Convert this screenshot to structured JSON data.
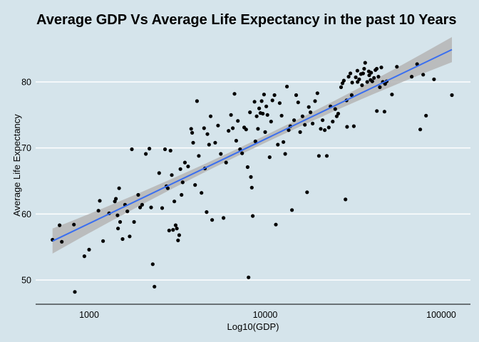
{
  "chart_data": {
    "type": "scatter",
    "title": "Average GDP Vs Average Life Expectancy in the past 10 Years",
    "xlabel": "Log10(GDP)",
    "ylabel": "Average Life Expectancy",
    "x_scale": "log10",
    "xlim": [
      450,
      150000
    ],
    "ylim": [
      45.5,
      86
    ],
    "x_ticks": [
      {
        "value": 1000,
        "label": "1000"
      },
      {
        "value": 10000,
        "label": "10000"
      },
      {
        "value": 100000,
        "label": "100000"
      }
    ],
    "y_ticks": [
      {
        "value": 50,
        "label": "50"
      },
      {
        "value": 60,
        "label": "60"
      },
      {
        "value": 70,
        "label": "70"
      },
      {
        "value": 80,
        "label": "80"
      }
    ],
    "grid": "horizontal-major",
    "legend": "none",
    "colors": {
      "background": "#d5e4eb",
      "grid": "#ffffff",
      "points": "#000000",
      "fit_line": "#3a6ff0",
      "confidence_band": "#b5b5b5"
    },
    "trend_line": {
      "method": "linear regression on log10(x)",
      "x_start": 620,
      "y_start": 55.9,
      "x_end": 115000,
      "y_end": 84.9,
      "band_halfwidth_ends": 1.9,
      "band_halfwidth_center": 0.55
    },
    "points": [
      [
        620,
        56.1
      ],
      [
        680,
        58.3
      ],
      [
        700,
        55.8
      ],
      [
        820,
        58.4
      ],
      [
        830,
        48.2
      ],
      [
        940,
        53.6
      ],
      [
        1000,
        54.6
      ],
      [
        1130,
        60.5
      ],
      [
        1150,
        62.0
      ],
      [
        1200,
        55.9
      ],
      [
        1300,
        60.1
      ],
      [
        1400,
        61.9
      ],
      [
        1420,
        62.3
      ],
      [
        1450,
        59.8
      ],
      [
        1460,
        57.8
      ],
      [
        1480,
        63.9
      ],
      [
        1500,
        58.8
      ],
      [
        1550,
        56.2
      ],
      [
        1600,
        61.4
      ],
      [
        1650,
        60.4
      ],
      [
        1700,
        56.6
      ],
      [
        1750,
        69.8
      ],
      [
        1800,
        58.8
      ],
      [
        1900,
        62.9
      ],
      [
        1950,
        61.0
      ],
      [
        2000,
        61.4
      ],
      [
        2100,
        69.1
      ],
      [
        2200,
        69.9
      ],
      [
        2250,
        61.0
      ],
      [
        2300,
        52.4
      ],
      [
        2350,
        49.0
      ],
      [
        2500,
        66.2
      ],
      [
        2600,
        60.9
      ],
      [
        2700,
        69.8
      ],
      [
        2750,
        64.2
      ],
      [
        2800,
        63.9
      ],
      [
        2850,
        57.5
      ],
      [
        2900,
        69.6
      ],
      [
        2950,
        65.9
      ],
      [
        3000,
        57.6
      ],
      [
        3050,
        61.9
      ],
      [
        3100,
        58.3
      ],
      [
        3150,
        57.8
      ],
      [
        3200,
        56.0
      ],
      [
        3250,
        56.8
      ],
      [
        3300,
        66.8
      ],
      [
        3350,
        62.9
      ],
      [
        3400,
        64.8
      ],
      [
        3500,
        67.8
      ],
      [
        3650,
        67.2
      ],
      [
        3800,
        72.9
      ],
      [
        3850,
        72.3
      ],
      [
        3900,
        70.8
      ],
      [
        4000,
        64.4
      ],
      [
        4100,
        77.1
      ],
      [
        4200,
        68.8
      ],
      [
        4350,
        63.2
      ],
      [
        4500,
        73.0
      ],
      [
        4550,
        66.9
      ],
      [
        4650,
        60.3
      ],
      [
        4700,
        72.1
      ],
      [
        4800,
        70.5
      ],
      [
        4900,
        74.8
      ],
      [
        5000,
        59.1
      ],
      [
        5200,
        70.8
      ],
      [
        5400,
        73.4
      ],
      [
        5600,
        69.1
      ],
      [
        5800,
        59.4
      ],
      [
        6000,
        67.8
      ],
      [
        6200,
        72.6
      ],
      [
        6400,
        75.0
      ],
      [
        6550,
        73.0
      ],
      [
        6700,
        78.2
      ],
      [
        6850,
        71.1
      ],
      [
        7000,
        74.1
      ],
      [
        7200,
        69.8
      ],
      [
        7400,
        69.2
      ],
      [
        7600,
        73.1
      ],
      [
        7800,
        72.8
      ],
      [
        7950,
        67.1
      ],
      [
        8050,
        50.4
      ],
      [
        8200,
        75.4
      ],
      [
        8300,
        65.6
      ],
      [
        8400,
        64.0
      ],
      [
        8500,
        59.7
      ],
      [
        8700,
        77.0
      ],
      [
        8800,
        71.0
      ],
      [
        8950,
        74.8
      ],
      [
        9100,
        72.9
      ],
      [
        9250,
        76.0
      ],
      [
        9400,
        75.3
      ],
      [
        9550,
        77.1
      ],
      [
        9700,
        75.2
      ],
      [
        9850,
        78.1
      ],
      [
        10000,
        72.4
      ],
      [
        10150,
        76.3
      ],
      [
        10300,
        75.0
      ],
      [
        10600,
        68.6
      ],
      [
        10800,
        74.0
      ],
      [
        11000,
        77.2
      ],
      [
        11300,
        78.0
      ],
      [
        11500,
        58.4
      ],
      [
        11800,
        70.5
      ],
      [
        12100,
        76.8
      ],
      [
        12400,
        74.9
      ],
      [
        12700,
        70.9
      ],
      [
        13000,
        69.1
      ],
      [
        13300,
        79.3
      ],
      [
        13600,
        72.7
      ],
      [
        13900,
        73.3
      ],
      [
        14200,
        60.6
      ],
      [
        14600,
        74.2
      ],
      [
        15000,
        78.0
      ],
      [
        15400,
        76.9
      ],
      [
        15800,
        72.4
      ],
      [
        16300,
        74.8
      ],
      [
        16800,
        73.5
      ],
      [
        17300,
        63.3
      ],
      [
        17700,
        76.2
      ],
      [
        18100,
        75.4
      ],
      [
        18600,
        73.7
      ],
      [
        19200,
        77.1
      ],
      [
        19800,
        78.3
      ],
      [
        20200,
        68.8
      ],
      [
        20700,
        72.9
      ],
      [
        21200,
        74.2
      ],
      [
        21800,
        72.7
      ],
      [
        22400,
        68.8
      ],
      [
        23000,
        73.1
      ],
      [
        23500,
        76.3
      ],
      [
        24200,
        74.0
      ],
      [
        25000,
        75.9
      ],
      [
        26000,
        75.2
      ],
      [
        27500,
        79.8
      ],
      [
        28000,
        80.2
      ],
      [
        28600,
        62.2
      ],
      [
        29200,
        73.2
      ],
      [
        29800,
        80.8
      ],
      [
        30500,
        81.3
      ],
      [
        31200,
        79.9
      ],
      [
        31900,
        73.3
      ],
      [
        32700,
        80.7
      ],
      [
        33400,
        81.7
      ],
      [
        34200,
        80.4
      ],
      [
        35000,
        81.2
      ],
      [
        36000,
        81.3
      ],
      [
        37000,
        82.9
      ],
      [
        38000,
        80.0
      ],
      [
        38800,
        81.6
      ],
      [
        39700,
        80.3
      ],
      [
        40600,
        80.1
      ],
      [
        41500,
        80.6
      ],
      [
        42300,
        81.8
      ],
      [
        43100,
        75.6
      ],
      [
        44000,
        80.8
      ],
      [
        44800,
        79.2
      ],
      [
        45700,
        82.2
      ],
      [
        46600,
        80.0
      ],
      [
        47600,
        75.5
      ],
      [
        49000,
        80.1
      ],
      [
        52500,
        78.1
      ],
      [
        56000,
        82.3
      ],
      [
        68000,
        80.8
      ],
      [
        73000,
        82.7
      ],
      [
        76000,
        72.8
      ],
      [
        79000,
        81.1
      ],
      [
        82000,
        74.9
      ],
      [
        91000,
        80.4
      ],
      [
        115000,
        78.0
      ],
      [
        36500,
        82.0
      ],
      [
        40000,
        81.4
      ],
      [
        43000,
        82.0
      ],
      [
        48000,
        79.7
      ],
      [
        25500,
        74.8
      ],
      [
        29000,
        77.2
      ],
      [
        33500,
        80.0
      ],
      [
        31000,
        78.0
      ],
      [
        27000,
        79.2
      ],
      [
        39000,
        81.0
      ],
      [
        35500,
        79.5
      ]
    ]
  }
}
